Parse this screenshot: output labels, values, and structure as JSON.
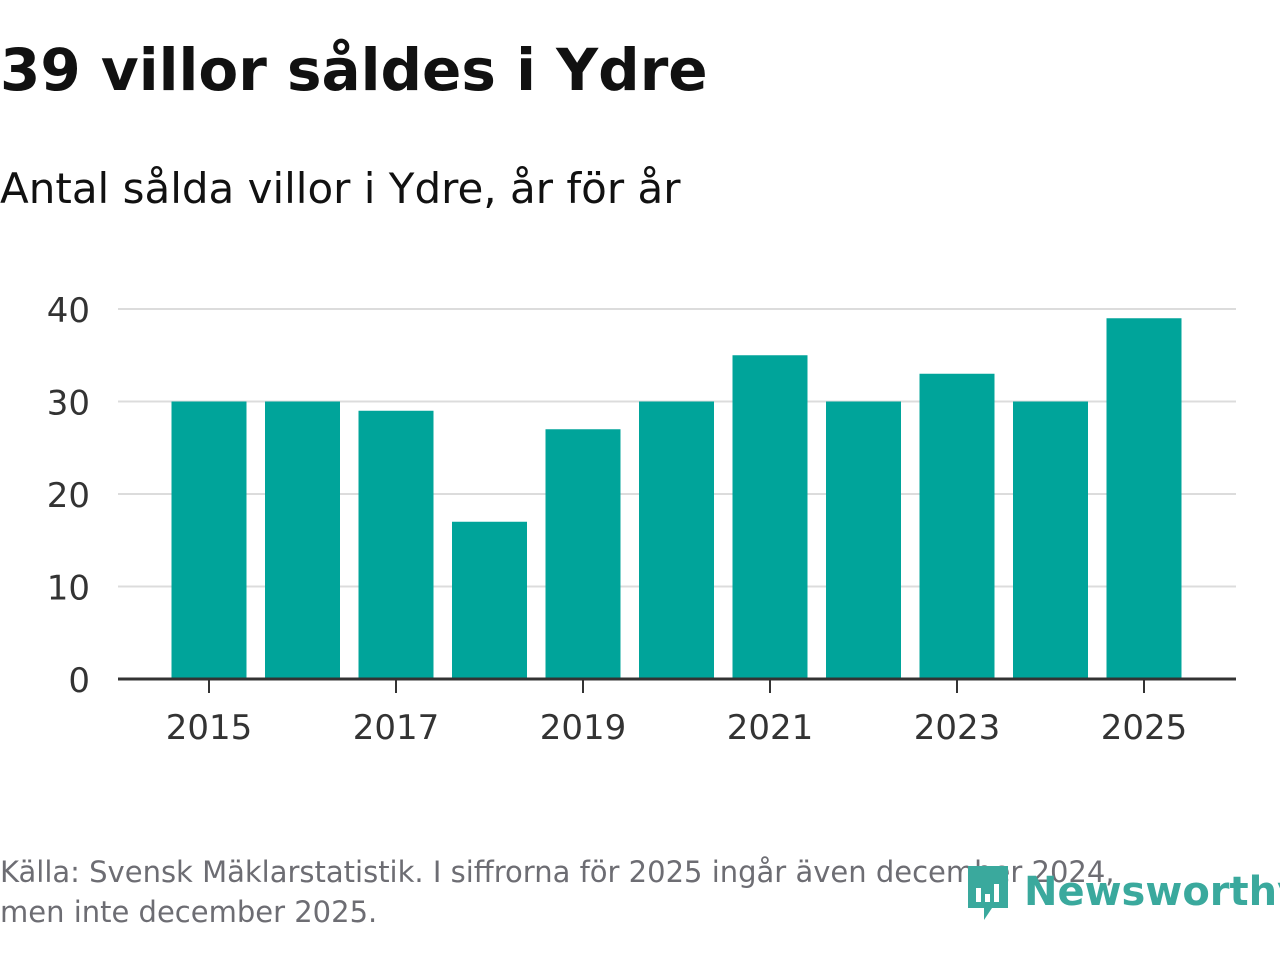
{
  "title": "39 villor såldes i Ydre",
  "subtitle": "Antal sålda villor i Ydre, år för år",
  "footer": {
    "line1": "Källa: Svensk Mäklarstatistik. I siffrorna för 2025 ingår även december 2024,",
    "line2": "men inte december 2025."
  },
  "logo": {
    "text": "Newsworthy",
    "icon": "newsworthy-logo-icon"
  },
  "colors": {
    "bar": "#00a49a",
    "grid": "#dcdcdc",
    "axis": "#333333",
    "text": "#333333",
    "logo": "#3aa99d"
  },
  "chart_data": {
    "type": "bar",
    "title": "39 villor såldes i Ydre",
    "subtitle": "Antal sålda villor i Ydre, år för år",
    "xlabel": "",
    "ylabel": "",
    "categories": [
      "2015",
      "2016",
      "2017",
      "2018",
      "2019",
      "2020",
      "2021",
      "2022",
      "2023",
      "2024",
      "2025"
    ],
    "values": [
      30,
      30,
      29,
      17,
      27,
      30,
      35,
      30,
      33,
      30,
      39
    ],
    "ylim": [
      0,
      40
    ],
    "yticks": [
      0,
      10,
      20,
      30,
      40
    ],
    "xticks": [
      "2015",
      "2017",
      "2019",
      "2021",
      "2023",
      "2025"
    ],
    "grid": true
  }
}
